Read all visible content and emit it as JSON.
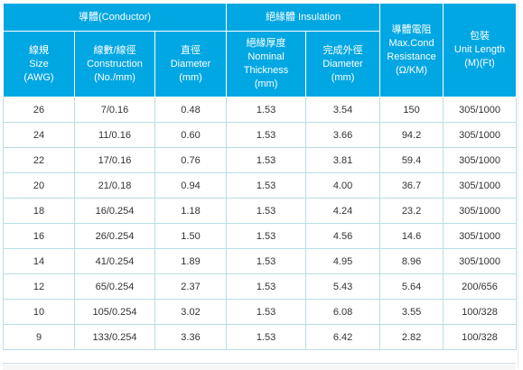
{
  "header": {
    "conductor": "導體(Conductor)",
    "insulation": "絕緣體 Insulation",
    "resistance": [
      "導體電阻",
      "Max.Cond",
      "Resistance",
      "(Ω/KM)"
    ],
    "unit_length": [
      "包裝",
      "Unit Length",
      "(M)(Ft)"
    ],
    "size": [
      "線規",
      "Size",
      "(AWG)"
    ],
    "construction": [
      "線數/線徑",
      "Construction",
      "(No./mm)"
    ],
    "cond_diameter": [
      "直徑",
      "Diameter",
      "(mm)"
    ],
    "thickness": [
      "絕緣厚度",
      "Nominal",
      "Thickness",
      "(mm)"
    ],
    "ins_diameter": [
      "完成外徑",
      "Diameter",
      "(mm)"
    ]
  },
  "rows": [
    {
      "awg": "26",
      "construction": "7/0.16",
      "cond_diameter": "0.48",
      "thickness": "1.53",
      "ins_diameter": "3.54",
      "resistance": "150",
      "unit_length": "305/1000"
    },
    {
      "awg": "24",
      "construction": "11/0.16",
      "cond_diameter": "0.60",
      "thickness": "1.53",
      "ins_diameter": "3.66",
      "resistance": "94.2",
      "unit_length": "305/1000"
    },
    {
      "awg": "22",
      "construction": "17/0.16",
      "cond_diameter": "0.76",
      "thickness": "1.53",
      "ins_diameter": "3.81",
      "resistance": "59.4",
      "unit_length": "305/1000"
    },
    {
      "awg": "20",
      "construction": "21/0.18",
      "cond_diameter": "0.94",
      "thickness": "1.53",
      "ins_diameter": "4.00",
      "resistance": "36.7",
      "unit_length": "305/1000"
    },
    {
      "awg": "18",
      "construction": "16/0.254",
      "cond_diameter": "1.18",
      "thickness": "1.53",
      "ins_diameter": "4.24",
      "resistance": "23.2",
      "unit_length": "305/1000"
    },
    {
      "awg": "16",
      "construction": "26/0.254",
      "cond_diameter": "1.50",
      "thickness": "1.53",
      "ins_diameter": "4.56",
      "resistance": "14.6",
      "unit_length": "305/1000"
    },
    {
      "awg": "14",
      "construction": "41/0.254",
      "cond_diameter": "1.89",
      "thickness": "1.53",
      "ins_diameter": "4.95",
      "resistance": "8.96",
      "unit_length": "305/1000"
    },
    {
      "awg": "12",
      "construction": "65/0.254",
      "cond_diameter": "2.37",
      "thickness": "1.53",
      "ins_diameter": "5.43",
      "resistance": "5.64",
      "unit_length": "200/656"
    },
    {
      "awg": "10",
      "construction": "105/0.254",
      "cond_diameter": "3.02",
      "thickness": "1.53",
      "ins_diameter": "6.08",
      "resistance": "3.55",
      "unit_length": "100/328"
    },
    {
      "awg": "9",
      "construction": "133/0.254",
      "cond_diameter": "3.36",
      "thickness": "1.53",
      "ins_diameter": "6.42",
      "resistance": "2.82",
      "unit_length": "100/328"
    }
  ],
  "colors": {
    "header_bg": "#00a7e3",
    "header_text": "#ffffff",
    "grid_line": "#b8dde9",
    "cell_text": "#333333"
  }
}
